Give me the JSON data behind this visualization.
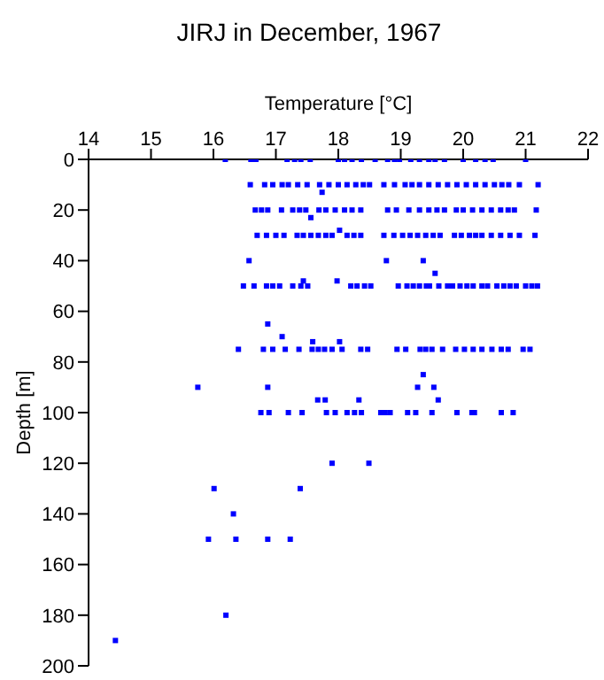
{
  "chart_data": {
    "type": "scatter",
    "title": "JIRJ in December, 1967",
    "xlabel": "Temperature [°C]",
    "ylabel": "Depth [m]",
    "xlim": [
      14,
      22
    ],
    "xticks": [
      14,
      15,
      16,
      17,
      18,
      19,
      20,
      21,
      22
    ],
    "ylim": [
      200,
      0
    ],
    "yticks": [
      0,
      20,
      40,
      60,
      80,
      100,
      120,
      140,
      160,
      180,
      200
    ],
    "grid": false,
    "legend": false,
    "marker": "square",
    "x": [
      16.19,
      16.6,
      16.68,
      17.18,
      17.3,
      17.4,
      17.55,
      18.0,
      18.1,
      18.22,
      18.37,
      18.59,
      18.79,
      18.9,
      18.98,
      19.16,
      19.3,
      19.45,
      19.55,
      19.7,
      20.0,
      20.2,
      20.35,
      20.48,
      21.0,
      16.59,
      16.82,
      16.95,
      17.1,
      17.2,
      17.35,
      17.5,
      17.7,
      17.85,
      18.0,
      18.14,
      18.28,
      18.4,
      18.5,
      18.73,
      18.9,
      19.07,
      19.18,
      19.3,
      19.45,
      19.6,
      19.75,
      19.9,
      20.05,
      20.2,
      20.35,
      20.5,
      20.62,
      20.73,
      20.9,
      21.2,
      17.74,
      16.67,
      16.77,
      16.87,
      17.09,
      17.27,
      17.38,
      17.48,
      17.56,
      17.69,
      17.8,
      17.95,
      18.1,
      18.22,
      18.36,
      18.79,
      18.93,
      19.13,
      19.3,
      19.45,
      19.58,
      19.7,
      19.89,
      20.0,
      20.15,
      20.3,
      20.45,
      20.6,
      20.72,
      20.82,
      21.17,
      16.7,
      16.85,
      17.0,
      17.13,
      17.34,
      17.44,
      17.56,
      17.68,
      17.8,
      17.9,
      18.02,
      18.14,
      18.25,
      18.36,
      18.73,
      18.89,
      19.03,
      19.15,
      19.27,
      19.4,
      19.52,
      19.63,
      19.86,
      19.97,
      20.1,
      20.2,
      20.3,
      20.45,
      20.6,
      20.75,
      20.9,
      21.15,
      16.57,
      18.77,
      19.36,
      19.55,
      16.48,
      16.65,
      16.85,
      16.95,
      17.06,
      17.27,
      17.4,
      17.51,
      17.44,
      17.98,
      18.2,
      18.3,
      18.42,
      18.52,
      18.96,
      19.1,
      19.2,
      19.3,
      19.41,
      19.46,
      19.61,
      19.75,
      19.83,
      19.95,
      20.06,
      20.16,
      20.3,
      20.39,
      20.54,
      20.65,
      20.75,
      20.85,
      21.0,
      21.1,
      21.19,
      16.87,
      17.1,
      17.59,
      18.02,
      16.4,
      16.8,
      16.95,
      17.15,
      17.37,
      17.58,
      17.68,
      17.78,
      17.9,
      18.06,
      18.36,
      18.47,
      18.94,
      19.08,
      19.31,
      19.4,
      19.5,
      19.67,
      19.88,
      20.02,
      20.16,
      20.3,
      20.46,
      20.61,
      20.72,
      20.96,
      21.07,
      19.36,
      15.75,
      16.87,
      19.27,
      19.53,
      17.67,
      17.79,
      18.33,
      19.6,
      16.76,
      16.89,
      17.2,
      17.42,
      17.81,
      17.95,
      18.14,
      18.26,
      18.37,
      18.68,
      18.75,
      18.83,
      19.11,
      19.24,
      19.5,
      19.9,
      20.14,
      20.18,
      20.61,
      20.8,
      17.9,
      18.49,
      16.01,
      17.39,
      16.32,
      15.92,
      16.36,
      16.87,
      17.23,
      16.2,
      14.43
    ],
    "series": [
      {
        "color": "#0000ff",
        "values": [
          0,
          0,
          0,
          0,
          0,
          0,
          0,
          0,
          0,
          0,
          0,
          0,
          0,
          0,
          0,
          0,
          0,
          0,
          0,
          0,
          0,
          0,
          0,
          0,
          0,
          10,
          10,
          10,
          10,
          10,
          10,
          10,
          10,
          10,
          10,
          10,
          10,
          10,
          10,
          10,
          10,
          10,
          10,
          10,
          10,
          10,
          10,
          10,
          10,
          10,
          10,
          10,
          10,
          10,
          10,
          10,
          13,
          20,
          20,
          20,
          20,
          20,
          20,
          20,
          23,
          20,
          20,
          20,
          20,
          20,
          20,
          20,
          20,
          20,
          20,
          20,
          20,
          20,
          20,
          20,
          20,
          20,
          20,
          20,
          20,
          20,
          20,
          30,
          30,
          30,
          30,
          30,
          30,
          30,
          30,
          30,
          30,
          28,
          30,
          30,
          30,
          30,
          30,
          30,
          30,
          30,
          30,
          30,
          30,
          30,
          30,
          30,
          30,
          30,
          30,
          30,
          30,
          30,
          30,
          40,
          40,
          40,
          45,
          50,
          50,
          50,
          50,
          50,
          50,
          50,
          50,
          48,
          48,
          50,
          50,
          50,
          50,
          50,
          50,
          50,
          50,
          50,
          50,
          50,
          50,
          50,
          50,
          50,
          50,
          50,
          50,
          50,
          50,
          50,
          50,
          50,
          50,
          50,
          65,
          70,
          72,
          72,
          75,
          75,
          75,
          75,
          75,
          75,
          75,
          75,
          75,
          75,
          75,
          75,
          75,
          75,
          75,
          75,
          75,
          75,
          75,
          75,
          75,
          75,
          75,
          75,
          75,
          75,
          75,
          85,
          90,
          90,
          90,
          90,
          95,
          95,
          95,
          95,
          100,
          100,
          100,
          100,
          100,
          100,
          100,
          100,
          100,
          100,
          100,
          100,
          100,
          100,
          100,
          100,
          100,
          100,
          100,
          100,
          120,
          120,
          130,
          130,
          140,
          150,
          150,
          150,
          150,
          180,
          190
        ]
      }
    ]
  }
}
